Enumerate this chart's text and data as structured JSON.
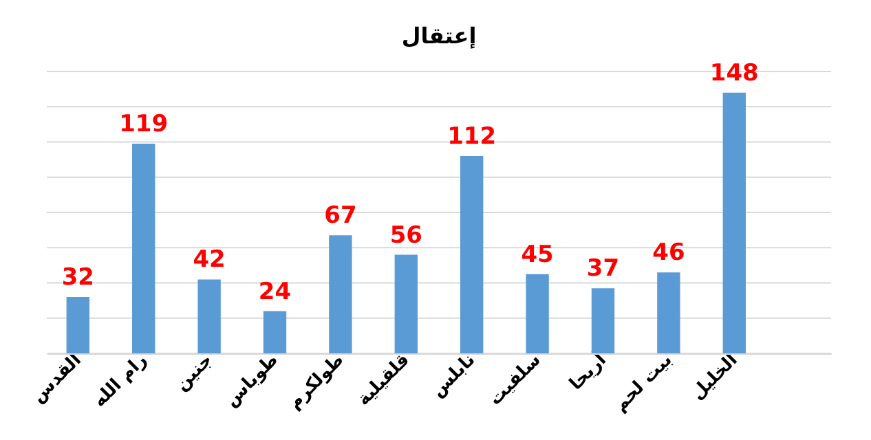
{
  "chart_data": {
    "type": "bar",
    "title": "إعتقال",
    "categories": [
      "القدس",
      "رام الله",
      "جنين",
      "طوباس",
      "طولكرم",
      "قلقيلية",
      "نابلس",
      "سلفيت",
      "أريحا",
      "بيت لحم",
      "الخليل",
      null
    ],
    "values": [
      32,
      119,
      42,
      24,
      67,
      56,
      112,
      45,
      37,
      46,
      148,
      null
    ],
    "color": "#5b9bd5",
    "ylim": [
      0,
      160
    ],
    "yticks": [
      {
        "value": 0,
        "label": null
      },
      {
        "value": 20,
        "label": null
      },
      {
        "value": 40,
        "label": null
      },
      {
        "value": 60,
        "label": null
      },
      {
        "value": 80,
        "label": null
      },
      {
        "value": 100,
        "label": null
      },
      {
        "value": 120,
        "label": null
      },
      {
        "value": 140,
        "label": null
      },
      {
        "value": 160,
        "label": null
      }
    ],
    "grid": "y",
    "tick_labels": "x",
    "data_labels": true
  }
}
